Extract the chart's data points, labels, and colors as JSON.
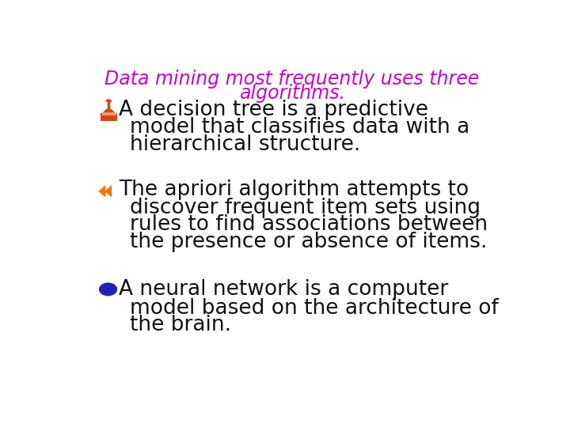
{
  "title_line1": "Data mining most frequently uses three",
  "title_line2": "algorithms.",
  "title_color": "#CC00CC",
  "title_fontsize": 17,
  "background_color": "#ffffff",
  "bullet1_icon_color": "#DD4400",
  "bullet1_text_line1": "A decision tree is a predictive",
  "bullet1_text_line2": "model that classifies data with a",
  "bullet1_text_line3": "hierarchical structure.",
  "bullet2_icon_color": "#EE7700",
  "bullet2_text_line1": "The apriori algorithm attempts to",
  "bullet2_text_line2": "discover frequent item sets using",
  "bullet2_text_line3": "rules to find associations between",
  "bullet2_text_line4": "the presence or absence of items.",
  "bullet3_icon_color": "#2222BB",
  "bullet3_text_line1": "A neural network is a computer",
  "bullet3_text_line2": "model based on the architecture of",
  "bullet3_text_line3": "the brain.",
  "body_fontsize": 19,
  "body_color": "#111111"
}
